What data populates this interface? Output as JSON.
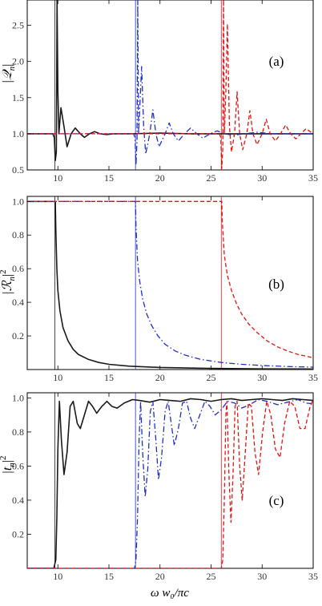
{
  "chart_data": [
    {
      "type": "line",
      "panel_label": "(a)",
      "ylabel": "|𝒬",
      "ylabel_sub": "n",
      "xlim": [
        7,
        35
      ],
      "ylim": [
        0.5,
        2.85
      ],
      "xticks": [
        10,
        15,
        20,
        25,
        30,
        35
      ],
      "yticks": [
        "0.5",
        "1.0",
        "1.5",
        "2.0",
        "2.5"
      ],
      "yticks_values": [
        0.5,
        1.0,
        1.5,
        2.0,
        2.5
      ],
      "series": [
        {
          "color": "#1a1a1a",
          "dash": "solid",
          "cutoff": 9.7,
          "points": [
            [
              7,
              1.0
            ],
            [
              9.5,
              1.0
            ],
            [
              9.65,
              0.95
            ],
            [
              9.75,
              0.63
            ],
            [
              9.85,
              0.75
            ],
            [
              9.92,
              2.85
            ],
            [
              10.0,
              1.6
            ],
            [
              10.1,
              1.0
            ],
            [
              10.3,
              1.36
            ],
            [
              10.6,
              1.1
            ],
            [
              10.9,
              0.82
            ],
            [
              11.3,
              1.0
            ],
            [
              11.7,
              1.08
            ],
            [
              12.2,
              1.0
            ],
            [
              12.6,
              0.95
            ],
            [
              13.1,
              1.0
            ],
            [
              13.6,
              1.03
            ],
            [
              14.1,
              1.0
            ],
            [
              14.8,
              0.99
            ],
            [
              15.5,
              1.0
            ],
            [
              17.0,
              1.0
            ],
            [
              20.0,
              1.01
            ],
            [
              23.0,
              1.0
            ],
            [
              26.0,
              1.0
            ],
            [
              29.0,
              1.0
            ],
            [
              32.0,
              1.0
            ],
            [
              35.0,
              1.0
            ]
          ]
        },
        {
          "color": "#1f2fcc",
          "dash": "dashdot",
          "cutoff": 17.6,
          "points": [
            [
              7,
              1.0
            ],
            [
              17.4,
              1.0
            ],
            [
              17.55,
              0.95
            ],
            [
              17.65,
              0.57
            ],
            [
              17.75,
              0.9
            ],
            [
              17.82,
              2.85
            ],
            [
              17.9,
              1.0
            ],
            [
              18.0,
              1.3
            ],
            [
              18.2,
              1.93
            ],
            [
              18.4,
              1.1
            ],
            [
              18.6,
              0.72
            ],
            [
              19.0,
              1.0
            ],
            [
              19.3,
              1.33
            ],
            [
              19.6,
              1.0
            ],
            [
              19.9,
              0.82
            ],
            [
              20.5,
              1.0
            ],
            [
              20.9,
              1.15
            ],
            [
              21.3,
              1.0
            ],
            [
              21.8,
              0.9
            ],
            [
              22.4,
              1.0
            ],
            [
              23.0,
              1.08
            ],
            [
              23.6,
              1.0
            ],
            [
              24.2,
              0.94
            ],
            [
              24.9,
              1.0
            ],
            [
              25.6,
              1.04
            ],
            [
              26.3,
              1.0
            ],
            [
              27.2,
              0.98
            ],
            [
              28.2,
              1.0
            ],
            [
              29.5,
              1.02
            ],
            [
              31.0,
              1.0
            ],
            [
              33.0,
              1.0
            ],
            [
              35.0,
              1.0
            ]
          ]
        },
        {
          "color": "#e01414",
          "dash": "dashed",
          "cutoff": 26.0,
          "points": [
            [
              7,
              1.0
            ],
            [
              25.8,
              1.0
            ],
            [
              25.95,
              0.95
            ],
            [
              26.05,
              0.52
            ],
            [
              26.15,
              0.8
            ],
            [
              26.22,
              2.85
            ],
            [
              26.3,
              1.0
            ],
            [
              26.45,
              1.6
            ],
            [
              26.6,
              2.52
            ],
            [
              26.8,
              1.1
            ],
            [
              27.0,
              0.75
            ],
            [
              27.3,
              1.0
            ],
            [
              27.55,
              1.58
            ],
            [
              27.8,
              1.0
            ],
            [
              28.1,
              0.78
            ],
            [
              28.5,
              1.0
            ],
            [
              28.8,
              1.32
            ],
            [
              29.1,
              1.0
            ],
            [
              29.5,
              0.85
            ],
            [
              30.0,
              1.0
            ],
            [
              30.4,
              1.2
            ],
            [
              30.8,
              1.0
            ],
            [
              31.3,
              0.9
            ],
            [
              31.8,
              1.0
            ],
            [
              32.3,
              1.12
            ],
            [
              32.8,
              1.0
            ],
            [
              33.3,
              0.93
            ],
            [
              33.8,
              1.0
            ],
            [
              34.3,
              1.07
            ],
            [
              35.0,
              1.0
            ]
          ]
        }
      ]
    },
    {
      "type": "line",
      "panel_label": "(b)",
      "ylabel": "|ℛ",
      "ylabel_sub": "n",
      "ylabel_sup": "2",
      "xlim": [
        7,
        35
      ],
      "ylim": [
        0.0,
        1.03
      ],
      "xticks": [
        10,
        15,
        20,
        25,
        30,
        35
      ],
      "yticks": [
        "0.2",
        "0.4",
        "0.6",
        "0.8",
        "1.0"
      ],
      "yticks_values": [
        0.2,
        0.4,
        0.6,
        0.8,
        1.0
      ],
      "series": [
        {
          "color": "#1a1a1a",
          "dash": "solid",
          "cutoff": 9.7,
          "points": [
            [
              7,
              1.0
            ],
            [
              9.75,
              1.0
            ],
            [
              9.8,
              0.83
            ],
            [
              9.9,
              0.6
            ],
            [
              10.0,
              0.47
            ],
            [
              10.2,
              0.35
            ],
            [
              10.5,
              0.25
            ],
            [
              11.0,
              0.17
            ],
            [
              11.5,
              0.12
            ],
            [
              12.0,
              0.09
            ],
            [
              13.0,
              0.06
            ],
            [
              14.0,
              0.042
            ],
            [
              15.0,
              0.031
            ],
            [
              17.0,
              0.02
            ],
            [
              20.0,
              0.012
            ],
            [
              25.0,
              0.007
            ],
            [
              30.0,
              0.004
            ],
            [
              35.0,
              0.003
            ]
          ]
        },
        {
          "color": "#1f2fcc",
          "dash": "dashdot",
          "cutoff": 17.6,
          "points": [
            [
              7,
              1.0
            ],
            [
              17.6,
              1.0
            ],
            [
              17.65,
              0.85
            ],
            [
              17.8,
              0.65
            ],
            [
              18.0,
              0.53
            ],
            [
              18.3,
              0.42
            ],
            [
              18.7,
              0.33
            ],
            [
              19.2,
              0.26
            ],
            [
              19.8,
              0.2
            ],
            [
              20.5,
              0.15
            ],
            [
              21.5,
              0.11
            ],
            [
              22.5,
              0.085
            ],
            [
              24.0,
              0.06
            ],
            [
              26.0,
              0.042
            ],
            [
              28.0,
              0.031
            ],
            [
              30.0,
              0.024
            ],
            [
              32.5,
              0.018
            ],
            [
              35.0,
              0.014
            ]
          ]
        },
        {
          "color": "#e01414",
          "dash": "dashed",
          "cutoff": 26.0,
          "points": [
            [
              7,
              1.0
            ],
            [
              26.05,
              1.0
            ],
            [
              26.1,
              0.88
            ],
            [
              26.3,
              0.68
            ],
            [
              26.6,
              0.56
            ],
            [
              27.0,
              0.47
            ],
            [
              27.5,
              0.39
            ],
            [
              28.0,
              0.33
            ],
            [
              28.7,
              0.27
            ],
            [
              29.5,
              0.22
            ],
            [
              30.5,
              0.17
            ],
            [
              31.5,
              0.135
            ],
            [
              32.5,
              0.11
            ],
            [
              33.5,
              0.09
            ],
            [
              35.0,
              0.07
            ]
          ]
        }
      ]
    },
    {
      "type": "line",
      "panel_label": "(c)",
      "ylabel": "|t",
      "ylabel_sub": "n",
      "ylabel_sup": "2",
      "xlabel": "ω w₀/πc",
      "xlim": [
        7,
        35
      ],
      "ylim": [
        0.0,
        1.03
      ],
      "xticks": [
        10,
        15,
        20,
        25,
        30,
        35
      ],
      "xtick_labels": [
        "10",
        "15",
        "20",
        "25",
        "30",
        "35"
      ],
      "yticks": [
        "0.2",
        "0.4",
        "0.6",
        "0.8",
        "1.0"
      ],
      "yticks_values": [
        0.2,
        0.4,
        0.6,
        0.8,
        1.0
      ],
      "series": [
        {
          "color": "#1a1a1a",
          "dash": "solid",
          "cutoff": 9.7,
          "points": [
            [
              7,
              0.0
            ],
            [
              9.6,
              0.0
            ],
            [
              9.8,
              0.05
            ],
            [
              9.9,
              0.3
            ],
            [
              10.0,
              0.7
            ],
            [
              10.15,
              0.98
            ],
            [
              10.35,
              0.75
            ],
            [
              10.6,
              0.55
            ],
            [
              10.9,
              0.68
            ],
            [
              11.2,
              0.95
            ],
            [
              11.5,
              0.98
            ],
            [
              11.9,
              0.85
            ],
            [
              12.2,
              0.82
            ],
            [
              12.6,
              0.9
            ],
            [
              13.0,
              0.98
            ],
            [
              13.4,
              0.95
            ],
            [
              13.8,
              0.91
            ],
            [
              14.3,
              0.95
            ],
            [
              14.8,
              0.98
            ],
            [
              15.3,
              0.95
            ],
            [
              15.8,
              0.94
            ],
            [
              16.5,
              0.97
            ],
            [
              17.3,
              0.99
            ],
            [
              18.0,
              0.985
            ],
            [
              19.0,
              0.975
            ],
            [
              20.0,
              0.99
            ],
            [
              21.0,
              0.985
            ],
            [
              22.0,
              0.98
            ],
            [
              23.0,
              0.995
            ],
            [
              24.0,
              0.99
            ],
            [
              25.0,
              0.98
            ],
            [
              26.0,
              0.99
            ],
            [
              27.0,
              0.995
            ],
            [
              28.0,
              0.985
            ],
            [
              29.0,
              0.99
            ],
            [
              30.0,
              0.995
            ],
            [
              31.0,
              0.99
            ],
            [
              32.0,
              0.985
            ],
            [
              33.0,
              0.995
            ],
            [
              34.0,
              0.99
            ],
            [
              35.0,
              0.985
            ]
          ]
        },
        {
          "color": "#1f2fcc",
          "dash": "dashdot",
          "cutoff": 17.6,
          "points": [
            [
              7,
              0.0
            ],
            [
              17.5,
              0.0
            ],
            [
              17.65,
              0.05
            ],
            [
              17.8,
              0.3
            ],
            [
              17.95,
              0.75
            ],
            [
              18.1,
              0.98
            ],
            [
              18.3,
              0.68
            ],
            [
              18.55,
              0.42
            ],
            [
              18.8,
              0.58
            ],
            [
              19.05,
              0.92
            ],
            [
              19.3,
              0.98
            ],
            [
              19.6,
              0.75
            ],
            [
              19.85,
              0.52
            ],
            [
              20.15,
              0.65
            ],
            [
              20.5,
              0.92
            ],
            [
              20.8,
              0.98
            ],
            [
              21.1,
              0.85
            ],
            [
              21.4,
              0.72
            ],
            [
              21.8,
              0.82
            ],
            [
              22.2,
              0.97
            ],
            [
              22.6,
              0.98
            ],
            [
              23.0,
              0.88
            ],
            [
              23.4,
              0.82
            ],
            [
              23.9,
              0.9
            ],
            [
              24.4,
              0.98
            ],
            [
              24.9,
              0.95
            ],
            [
              25.4,
              0.9
            ],
            [
              26.0,
              0.93
            ],
            [
              26.6,
              0.98
            ],
            [
              27.3,
              0.97
            ],
            [
              28.0,
              0.94
            ],
            [
              28.8,
              0.96
            ],
            [
              29.6,
              0.99
            ],
            [
              30.5,
              0.98
            ],
            [
              31.5,
              0.96
            ],
            [
              32.5,
              0.975
            ],
            [
              33.5,
              0.99
            ],
            [
              34.3,
              0.97
            ],
            [
              35.0,
              0.965
            ]
          ]
        },
        {
          "color": "#e01414",
          "dash": "dashed",
          "cutoff": 26.0,
          "points": [
            [
              7,
              0.0
            ],
            [
              26.0,
              0.0
            ],
            [
              26.15,
              0.05
            ],
            [
              26.3,
              0.4
            ],
            [
              26.45,
              0.9
            ],
            [
              26.55,
              0.98
            ],
            [
              26.75,
              0.55
            ],
            [
              26.95,
              0.27
            ],
            [
              27.15,
              0.55
            ],
            [
              27.35,
              0.95
            ],
            [
              27.55,
              0.98
            ],
            [
              27.8,
              0.6
            ],
            [
              28.05,
              0.4
            ],
            [
              28.35,
              0.68
            ],
            [
              28.65,
              0.97
            ],
            [
              28.95,
              0.95
            ],
            [
              29.3,
              0.68
            ],
            [
              29.65,
              0.55
            ],
            [
              30.05,
              0.8
            ],
            [
              30.45,
              0.98
            ],
            [
              30.85,
              0.9
            ],
            [
              31.3,
              0.7
            ],
            [
              31.75,
              0.65
            ],
            [
              32.2,
              0.85
            ],
            [
              32.7,
              0.98
            ],
            [
              33.2,
              0.95
            ],
            [
              33.7,
              0.82
            ],
            [
              34.2,
              0.82
            ],
            [
              34.7,
              0.95
            ],
            [
              35.0,
              0.99
            ]
          ]
        }
      ]
    }
  ]
}
